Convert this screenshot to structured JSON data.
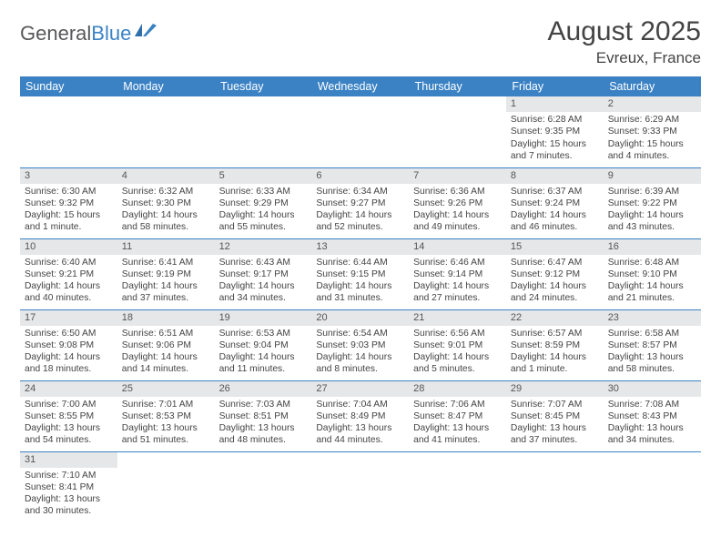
{
  "logo": {
    "part1": "General",
    "part2": "Blue"
  },
  "header": {
    "month": "August 2025",
    "location": "Evreux, France"
  },
  "weekdays": [
    "Sunday",
    "Monday",
    "Tuesday",
    "Wednesday",
    "Thursday",
    "Friday",
    "Saturday"
  ],
  "colors": {
    "header_bg": "#3b82c4",
    "header_text": "#ffffff",
    "day_strip_bg": "#e6e7e8",
    "border": "#3b82c4",
    "text": "#444444"
  },
  "calendar": {
    "first_weekday_index": 5,
    "days": [
      {
        "n": 1,
        "sunrise": "6:28 AM",
        "sunset": "9:35 PM",
        "dl_h": 15,
        "dl_m": 7
      },
      {
        "n": 2,
        "sunrise": "6:29 AM",
        "sunset": "9:33 PM",
        "dl_h": 15,
        "dl_m": 4
      },
      {
        "n": 3,
        "sunrise": "6:30 AM",
        "sunset": "9:32 PM",
        "dl_h": 15,
        "dl_m": 1
      },
      {
        "n": 4,
        "sunrise": "6:32 AM",
        "sunset": "9:30 PM",
        "dl_h": 14,
        "dl_m": 58
      },
      {
        "n": 5,
        "sunrise": "6:33 AM",
        "sunset": "9:29 PM",
        "dl_h": 14,
        "dl_m": 55
      },
      {
        "n": 6,
        "sunrise": "6:34 AM",
        "sunset": "9:27 PM",
        "dl_h": 14,
        "dl_m": 52
      },
      {
        "n": 7,
        "sunrise": "6:36 AM",
        "sunset": "9:26 PM",
        "dl_h": 14,
        "dl_m": 49
      },
      {
        "n": 8,
        "sunrise": "6:37 AM",
        "sunset": "9:24 PM",
        "dl_h": 14,
        "dl_m": 46
      },
      {
        "n": 9,
        "sunrise": "6:39 AM",
        "sunset": "9:22 PM",
        "dl_h": 14,
        "dl_m": 43
      },
      {
        "n": 10,
        "sunrise": "6:40 AM",
        "sunset": "9:21 PM",
        "dl_h": 14,
        "dl_m": 40
      },
      {
        "n": 11,
        "sunrise": "6:41 AM",
        "sunset": "9:19 PM",
        "dl_h": 14,
        "dl_m": 37
      },
      {
        "n": 12,
        "sunrise": "6:43 AM",
        "sunset": "9:17 PM",
        "dl_h": 14,
        "dl_m": 34
      },
      {
        "n": 13,
        "sunrise": "6:44 AM",
        "sunset": "9:15 PM",
        "dl_h": 14,
        "dl_m": 31
      },
      {
        "n": 14,
        "sunrise": "6:46 AM",
        "sunset": "9:14 PM",
        "dl_h": 14,
        "dl_m": 27
      },
      {
        "n": 15,
        "sunrise": "6:47 AM",
        "sunset": "9:12 PM",
        "dl_h": 14,
        "dl_m": 24
      },
      {
        "n": 16,
        "sunrise": "6:48 AM",
        "sunset": "9:10 PM",
        "dl_h": 14,
        "dl_m": 21
      },
      {
        "n": 17,
        "sunrise": "6:50 AM",
        "sunset": "9:08 PM",
        "dl_h": 14,
        "dl_m": 18
      },
      {
        "n": 18,
        "sunrise": "6:51 AM",
        "sunset": "9:06 PM",
        "dl_h": 14,
        "dl_m": 14
      },
      {
        "n": 19,
        "sunrise": "6:53 AM",
        "sunset": "9:04 PM",
        "dl_h": 14,
        "dl_m": 11
      },
      {
        "n": 20,
        "sunrise": "6:54 AM",
        "sunset": "9:03 PM",
        "dl_h": 14,
        "dl_m": 8
      },
      {
        "n": 21,
        "sunrise": "6:56 AM",
        "sunset": "9:01 PM",
        "dl_h": 14,
        "dl_m": 5
      },
      {
        "n": 22,
        "sunrise": "6:57 AM",
        "sunset": "8:59 PM",
        "dl_h": 14,
        "dl_m": 1
      },
      {
        "n": 23,
        "sunrise": "6:58 AM",
        "sunset": "8:57 PM",
        "dl_h": 13,
        "dl_m": 58
      },
      {
        "n": 24,
        "sunrise": "7:00 AM",
        "sunset": "8:55 PM",
        "dl_h": 13,
        "dl_m": 54
      },
      {
        "n": 25,
        "sunrise": "7:01 AM",
        "sunset": "8:53 PM",
        "dl_h": 13,
        "dl_m": 51
      },
      {
        "n": 26,
        "sunrise": "7:03 AM",
        "sunset": "8:51 PM",
        "dl_h": 13,
        "dl_m": 48
      },
      {
        "n": 27,
        "sunrise": "7:04 AM",
        "sunset": "8:49 PM",
        "dl_h": 13,
        "dl_m": 44
      },
      {
        "n": 28,
        "sunrise": "7:06 AM",
        "sunset": "8:47 PM",
        "dl_h": 13,
        "dl_m": 41
      },
      {
        "n": 29,
        "sunrise": "7:07 AM",
        "sunset": "8:45 PM",
        "dl_h": 13,
        "dl_m": 37
      },
      {
        "n": 30,
        "sunrise": "7:08 AM",
        "sunset": "8:43 PM",
        "dl_h": 13,
        "dl_m": 34
      },
      {
        "n": 31,
        "sunrise": "7:10 AM",
        "sunset": "8:41 PM",
        "dl_h": 13,
        "dl_m": 30
      }
    ]
  },
  "labels": {
    "sunrise": "Sunrise:",
    "sunset": "Sunset:",
    "daylight": "Daylight:",
    "hours_word": "hours",
    "hour_word": "hour",
    "and_word": "and",
    "minutes_word": "minutes.",
    "minute_word": "minute."
  }
}
